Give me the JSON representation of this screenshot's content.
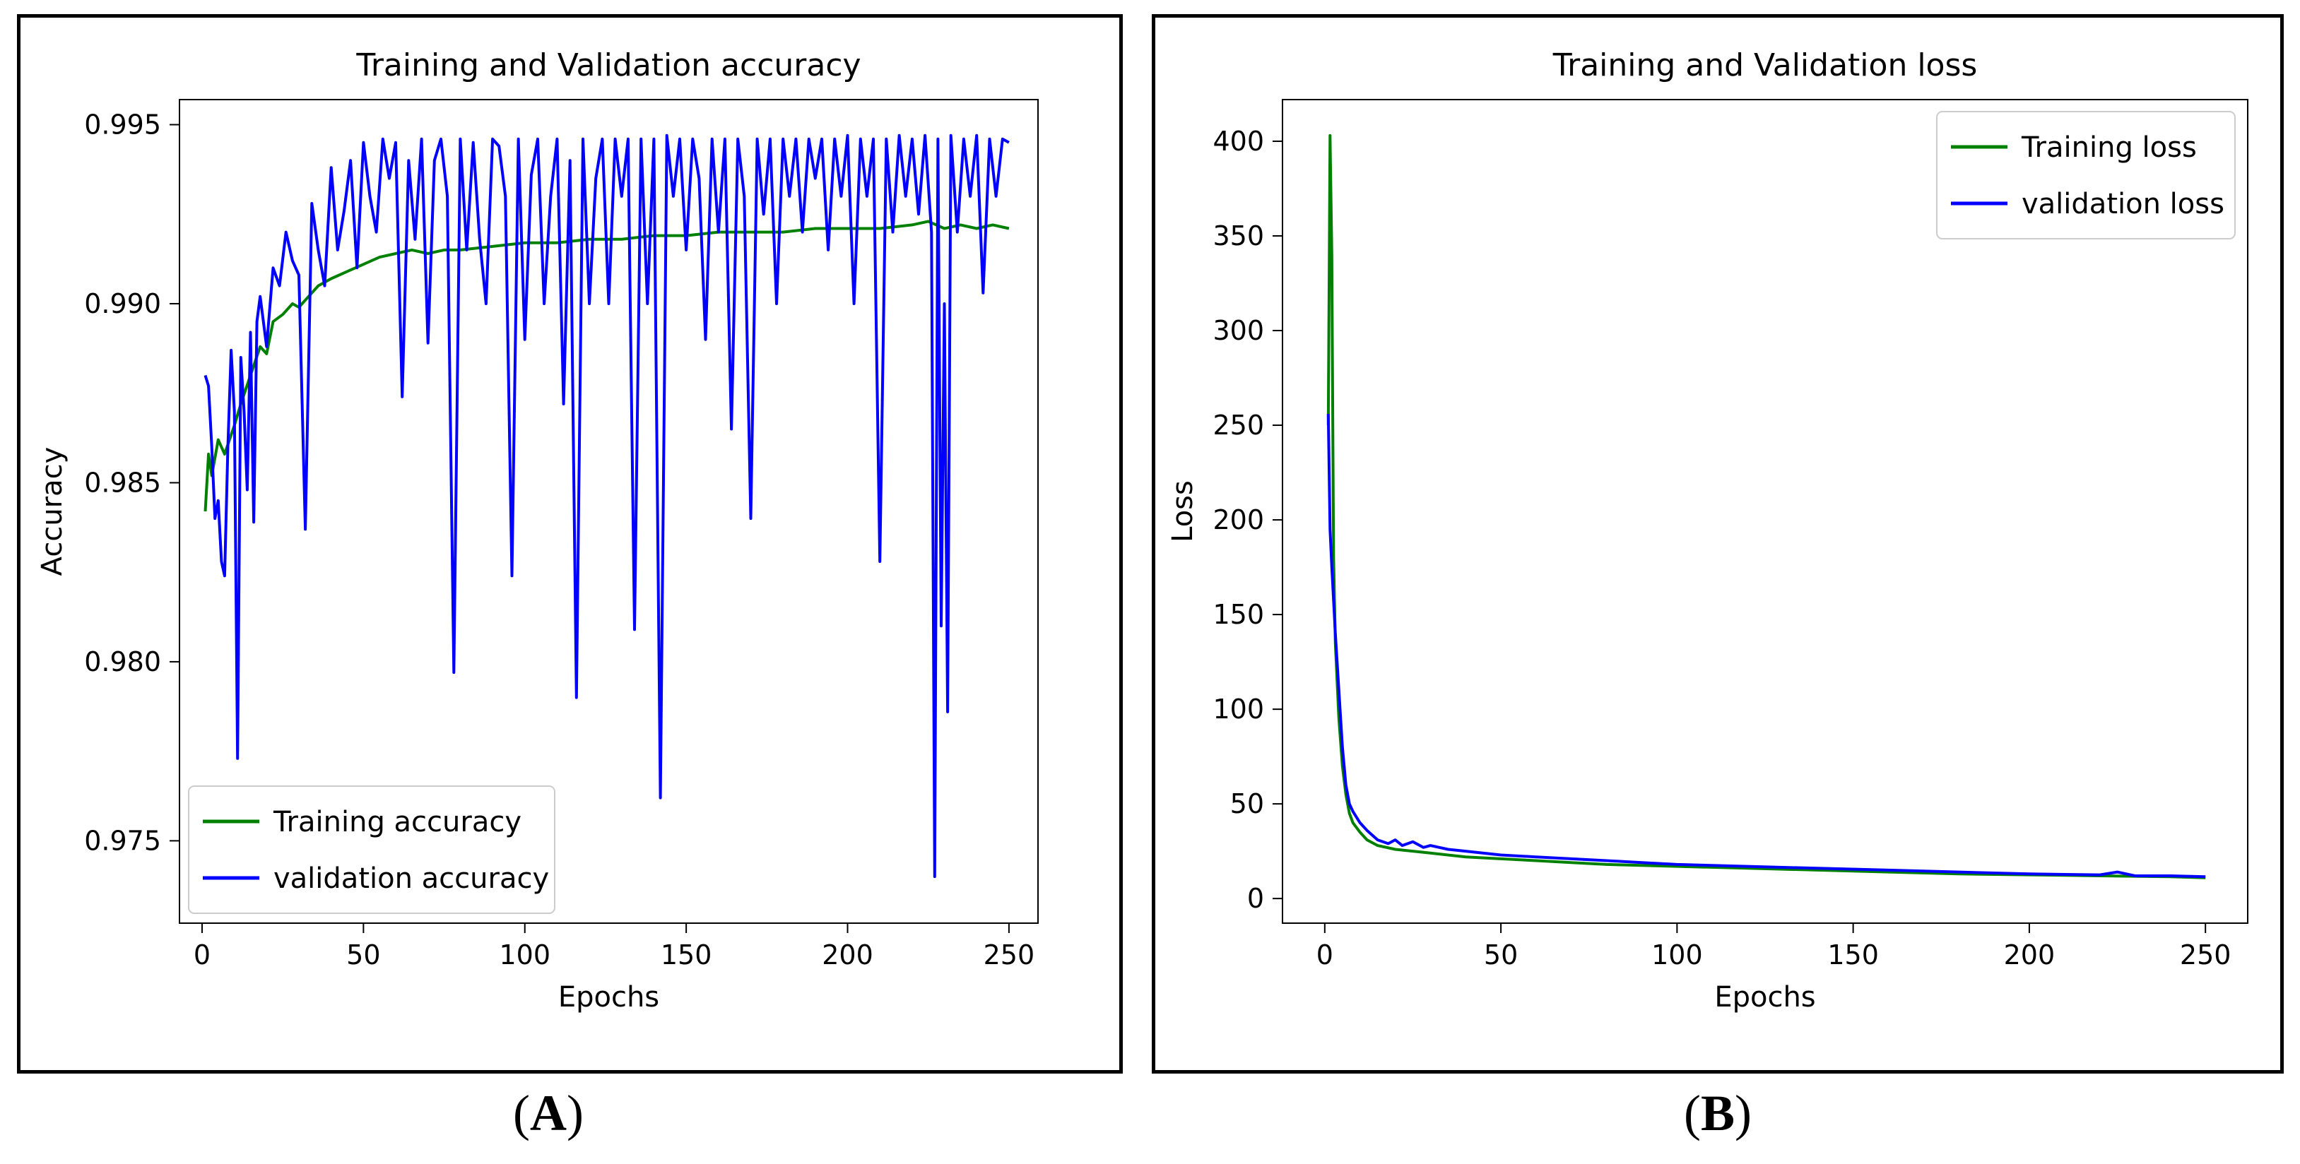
{
  "panels": [
    {
      "id": "A",
      "label": "A"
    },
    {
      "id": "B",
      "label": "B"
    }
  ],
  "chart_data": [
    {
      "type": "line",
      "title": "Training and Validation accuracy",
      "xlabel": "Epochs",
      "ylabel": "Accuracy",
      "xlim": [
        -7,
        259
      ],
      "ylim": [
        0.9727,
        0.9957
      ],
      "xticks": [
        0,
        50,
        100,
        150,
        200,
        250
      ],
      "yticks": [
        0.975,
        0.98,
        0.985,
        0.99,
        0.995
      ],
      "ytick_labels": [
        "0.975",
        "0.980",
        "0.985",
        "0.990",
        "0.995"
      ],
      "legend_position": "lower-left",
      "series": [
        {
          "name": "Training accuracy",
          "color": "#008000",
          "x": [
            1,
            2,
            3,
            5,
            7,
            10,
            12,
            15,
            18,
            20,
            22,
            25,
            28,
            30,
            33,
            36,
            40,
            45,
            50,
            55,
            60,
            65,
            70,
            75,
            80,
            90,
            100,
            110,
            120,
            130,
            140,
            150,
            160,
            170,
            180,
            190,
            200,
            210,
            220,
            225,
            230,
            235,
            240,
            245,
            250
          ],
          "y": [
            0.9842,
            0.9858,
            0.9852,
            0.9862,
            0.9858,
            0.9866,
            0.9872,
            0.988,
            0.9888,
            0.9886,
            0.9895,
            0.9897,
            0.99,
            0.9899,
            0.9902,
            0.9905,
            0.9907,
            0.9909,
            0.9911,
            0.9913,
            0.9914,
            0.9915,
            0.9914,
            0.9915,
            0.9915,
            0.9916,
            0.9917,
            0.9917,
            0.9918,
            0.9918,
            0.9919,
            0.9919,
            0.992,
            0.992,
            0.992,
            0.9921,
            0.9921,
            0.9921,
            0.9922,
            0.9923,
            0.9921,
            0.9922,
            0.9921,
            0.9922,
            0.9921
          ]
        },
        {
          "name": "validation accuracy",
          "color": "#0000ff",
          "x": [
            1,
            2,
            3,
            4,
            5,
            6,
            7,
            8,
            9,
            10,
            11,
            12,
            13,
            14,
            15,
            16,
            17,
            18,
            20,
            22,
            24,
            26,
            28,
            30,
            32,
            34,
            36,
            38,
            40,
            42,
            44,
            46,
            48,
            50,
            52,
            54,
            56,
            58,
            60,
            62,
            64,
            66,
            68,
            70,
            72,
            74,
            76,
            78,
            80,
            82,
            84,
            86,
            88,
            90,
            92,
            94,
            96,
            98,
            100,
            102,
            104,
            106,
            108,
            110,
            112,
            114,
            116,
            118,
            120,
            122,
            124,
            126,
            128,
            130,
            132,
            134,
            136,
            138,
            140,
            142,
            144,
            146,
            148,
            150,
            152,
            154,
            156,
            158,
            160,
            162,
            164,
            166,
            168,
            170,
            172,
            174,
            176,
            178,
            180,
            182,
            184,
            186,
            188,
            190,
            192,
            194,
            196,
            198,
            200,
            202,
            204,
            206,
            208,
            210,
            212,
            214,
            216,
            218,
            220,
            222,
            224,
            226,
            227,
            228,
            229,
            230,
            231,
            232,
            234,
            236,
            238,
            240,
            242,
            244,
            246,
            248,
            250
          ],
          "y": [
            0.988,
            0.9877,
            0.986,
            0.984,
            0.9845,
            0.9828,
            0.9824,
            0.986,
            0.9887,
            0.987,
            0.9773,
            0.9885,
            0.987,
            0.9848,
            0.9892,
            0.9839,
            0.9895,
            0.9902,
            0.9888,
            0.991,
            0.9905,
            0.992,
            0.9912,
            0.9908,
            0.9837,
            0.9928,
            0.9915,
            0.9905,
            0.9938,
            0.9915,
            0.9926,
            0.994,
            0.991,
            0.9945,
            0.993,
            0.992,
            0.9946,
            0.9935,
            0.9945,
            0.9874,
            0.994,
            0.9918,
            0.9946,
            0.9889,
            0.994,
            0.9946,
            0.993,
            0.9797,
            0.9946,
            0.9915,
            0.9945,
            0.9918,
            0.99,
            0.9946,
            0.9944,
            0.993,
            0.9824,
            0.9946,
            0.989,
            0.9936,
            0.9946,
            0.99,
            0.993,
            0.9946,
            0.9872,
            0.994,
            0.979,
            0.9946,
            0.99,
            0.9935,
            0.9946,
            0.99,
            0.9946,
            0.993,
            0.9946,
            0.9809,
            0.9946,
            0.99,
            0.9946,
            0.9762,
            0.9947,
            0.993,
            0.9946,
            0.9915,
            0.9946,
            0.9935,
            0.989,
            0.9946,
            0.992,
            0.9946,
            0.9865,
            0.9946,
            0.993,
            0.984,
            0.9946,
            0.9925,
            0.9946,
            0.99,
            0.9946,
            0.993,
            0.9946,
            0.992,
            0.9946,
            0.9935,
            0.9946,
            0.9915,
            0.9946,
            0.993,
            0.9947,
            0.99,
            0.9946,
            0.993,
            0.9946,
            0.9828,
            0.9946,
            0.992,
            0.9947,
            0.993,
            0.9946,
            0.9925,
            0.9947,
            0.992,
            0.974,
            0.9946,
            0.981,
            0.99,
            0.9786,
            0.9947,
            0.992,
            0.9946,
            0.993,
            0.9947,
            0.9903,
            0.9946,
            0.993,
            0.9946,
            0.9945
          ]
        }
      ]
    },
    {
      "type": "line",
      "title": "Training and Validation loss",
      "xlabel": "Epochs",
      "ylabel": "Loss",
      "xlim": [
        -12,
        262
      ],
      "ylim": [
        -13,
        422
      ],
      "xticks": [
        0,
        50,
        100,
        150,
        200,
        250
      ],
      "yticks": [
        0,
        50,
        100,
        150,
        200,
        250,
        300,
        350,
        400
      ],
      "ytick_labels": [
        "0",
        "50",
        "100",
        "150",
        "200",
        "250",
        "300",
        "350",
        "400"
      ],
      "legend_position": "upper-right",
      "series": [
        {
          "name": "Training loss",
          "color": "#008000",
          "x": [
            1,
            1.5,
            2,
            2.5,
            3,
            4,
            5,
            6,
            7,
            8,
            10,
            12,
            15,
            20,
            25,
            30,
            40,
            50,
            60,
            70,
            80,
            90,
            100,
            120,
            140,
            160,
            180,
            200,
            220,
            240,
            250
          ],
          "y": [
            250,
            403,
            340,
            180,
            135,
            95,
            70,
            55,
            45,
            40,
            35,
            31,
            28,
            26,
            25,
            24,
            22,
            21,
            20,
            19,
            18,
            17.5,
            17,
            16,
            15,
            14,
            13,
            12.5,
            12,
            11.5,
            11
          ]
        },
        {
          "name": "validation loss",
          "color": "#0000ff",
          "x": [
            1,
            1.5,
            2,
            3,
            4,
            5,
            6,
            7,
            8,
            10,
            12,
            15,
            18,
            20,
            22,
            25,
            28,
            30,
            35,
            40,
            50,
            60,
            70,
            80,
            90,
            100,
            120,
            140,
            160,
            180,
            200,
            220,
            225,
            230,
            240,
            250
          ],
          "y": [
            256,
            195,
            175,
            140,
            110,
            80,
            60,
            50,
            46,
            40,
            36,
            31,
            29,
            31,
            28,
            30,
            27,
            28,
            26,
            25,
            23,
            22,
            21,
            20,
            19,
            18,
            17,
            16,
            15,
            14,
            13,
            12.5,
            14,
            12,
            12,
            11.5
          ]
        }
      ]
    }
  ]
}
